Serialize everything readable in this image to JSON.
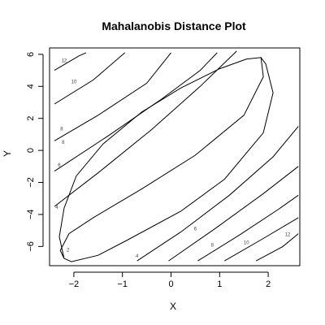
{
  "chart_data": {
    "type": "contour",
    "title": "Mahalanobis Distance Plot",
    "xlabel": "X",
    "ylabel": "Y",
    "xlim": [
      -2.5,
      2.65
    ],
    "ylim": [
      -7.2,
      6.4
    ],
    "xticks": [
      -2,
      -1,
      0,
      1,
      2
    ],
    "yticks": [
      -6,
      -4,
      -2,
      0,
      2,
      4,
      6
    ],
    "contours": [
      {
        "label": "2",
        "label_at": [
          -2.12,
          -6.3
        ],
        "segments": [
          [
            [
              -2.2,
              -6.75
            ],
            [
              -2.28,
              -6.25
            ],
            [
              -2.1,
              -5.2
            ],
            [
              -1.6,
              -4.2
            ],
            [
              -0.6,
              -2.4
            ],
            [
              0.5,
              -0.3
            ],
            [
              1.5,
              2.2
            ],
            [
              1.9,
              4.6
            ],
            [
              1.85,
              5.8
            ],
            [
              1.55,
              5.7
            ],
            [
              1.0,
              5.1
            ],
            [
              0.2,
              3.9
            ],
            [
              -0.6,
              2.4
            ],
            [
              -1.4,
              0.4
            ],
            [
              -1.95,
              -1.6
            ],
            [
              -2.2,
              -3.6
            ],
            [
              -2.3,
              -5.4
            ],
            [
              -2.2,
              -6.75
            ]
          ],
          [
            [
              -2.2,
              -6.75
            ],
            [
              -2.05,
              -6.95
            ],
            [
              -1.5,
              -6.55
            ],
            [
              -0.9,
              -5.6
            ],
            [
              0.2,
              -3.8
            ],
            [
              1.1,
              -1.8
            ],
            [
              1.9,
              1.1
            ],
            [
              2.1,
              3.6
            ],
            [
              1.95,
              5.4
            ],
            [
              1.85,
              5.8
            ]
          ]
        ]
      },
      {
        "label": "4",
        "label_at": [
          -2.35,
          -3.65
        ],
        "segments": [
          [
            [
              -2.4,
              -3.5
            ],
            [
              -1.5,
              -1.4
            ],
            [
              -0.4,
              1.3
            ],
            [
              0.6,
              4.0
            ],
            [
              1.35,
              6.2
            ]
          ],
          [
            [
              -0.7,
              -6.9
            ],
            [
              0.2,
              -5.1
            ],
            [
              1.2,
              -2.8
            ],
            [
              2.1,
              -0.4
            ],
            [
              2.62,
              1.5
            ]
          ]
        ]
      },
      {
        "label": "6",
        "label_at": [
          0.5,
          -5.0
        ],
        "segments": [
          [
            [
              -2.4,
              -1.3
            ],
            [
              -1.3,
              0.9
            ],
            [
              -0.2,
              3.2
            ],
            [
              0.6,
              5.0
            ],
            [
              0.95,
              6.1
            ]
          ],
          [
            [
              -0.05,
              -6.9
            ],
            [
              0.9,
              -4.9
            ],
            [
              1.9,
              -2.7
            ],
            [
              2.62,
              -1.0
            ]
          ]
        ]
      },
      {
        "label": "8",
        "label_at": [
          -2.22,
          0.4
        ],
        "segments": [
          [
            [
              -2.4,
              0.6
            ],
            [
              -1.5,
              2.2
            ],
            [
              -0.5,
              4.2
            ],
            [
              0.0,
              6.1
            ]
          ],
          [
            [
              0.55,
              -6.9
            ],
            [
              1.4,
              -5.3
            ],
            [
              2.2,
              -3.7
            ],
            [
              2.62,
              -2.8
            ]
          ]
        ]
      },
      {
        "label": "10",
        "label_at": [
          1.55,
          -5.85
        ],
        "segments": [
          [
            [
              -2.4,
              2.9
            ],
            [
              -1.6,
              4.4
            ],
            [
              -0.95,
              6.1
            ]
          ],
          [
            [
              1.1,
              -6.9
            ],
            [
              1.9,
              -5.5
            ],
            [
              2.62,
              -4.2
            ]
          ]
        ]
      },
      {
        "label": "12",
        "label_at": [
          2.4,
          -5.35
        ],
        "segments": [
          [
            [
              -2.4,
              5.0
            ],
            [
              -1.9,
              5.9
            ],
            [
              -1.75,
              6.1
            ]
          ],
          [
            [
              1.75,
              -6.9
            ],
            [
              2.3,
              -6.0
            ],
            [
              2.62,
              -5.2
            ]
          ]
        ]
      }
    ],
    "extra_labels": [
      {
        "label": "12",
        "at": [
          -2.2,
          5.5
        ]
      },
      {
        "label": "10",
        "at": [
          -2.0,
          4.2
        ]
      },
      {
        "label": "8",
        "at": [
          -2.25,
          1.25
        ]
      },
      {
        "label": "8",
        "at": [
          0.85,
          -6.0
        ]
      },
      {
        "label": "6",
        "at": [
          -2.3,
          -1.0
        ]
      },
      {
        "label": "4",
        "at": [
          -0.7,
          -6.7
        ]
      }
    ],
    "grid": false,
    "legend": "none"
  }
}
